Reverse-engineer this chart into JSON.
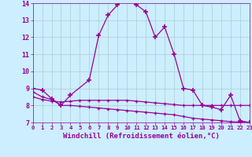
{
  "hours": [
    0,
    1,
    2,
    3,
    4,
    5,
    6,
    7,
    8,
    9,
    10,
    11,
    12,
    13,
    14,
    15,
    16,
    17,
    18,
    19,
    20,
    21,
    22,
    23
  ],
  "temp_line": [
    9.0,
    8.9,
    8.4,
    8.0,
    8.6,
    null,
    9.5,
    12.1,
    13.3,
    13.9,
    14.4,
    13.9,
    13.5,
    12.0,
    12.6,
    11.0,
    9.0,
    8.9,
    8.0,
    7.9,
    7.75,
    8.6,
    7.1,
    7.0
  ],
  "wind1_line": [
    8.5,
    8.35,
    8.25,
    8.2,
    8.25,
    8.3,
    8.3,
    8.3,
    8.3,
    8.3,
    8.3,
    8.25,
    8.2,
    8.15,
    8.1,
    8.05,
    8.0,
    8.0,
    8.0,
    8.0,
    8.0,
    8.0,
    8.0,
    8.0
  ],
  "wind2_line": [
    8.8,
    8.5,
    8.35,
    8.0,
    8.0,
    7.95,
    7.9,
    7.85,
    7.8,
    7.75,
    7.7,
    7.65,
    7.6,
    7.55,
    7.5,
    7.45,
    7.35,
    7.25,
    7.2,
    7.15,
    7.1,
    7.05,
    7.02,
    7.0
  ],
  "ylim": [
    7,
    14
  ],
  "yticks": [
    7,
    8,
    9,
    10,
    11,
    12,
    13,
    14
  ],
  "xlabel": "Windchill (Refroidissement éolien,°C)",
  "line_color": "#990099",
  "bg_color": "#cceeff",
  "grid_color": "#aacccc",
  "marker": "+"
}
